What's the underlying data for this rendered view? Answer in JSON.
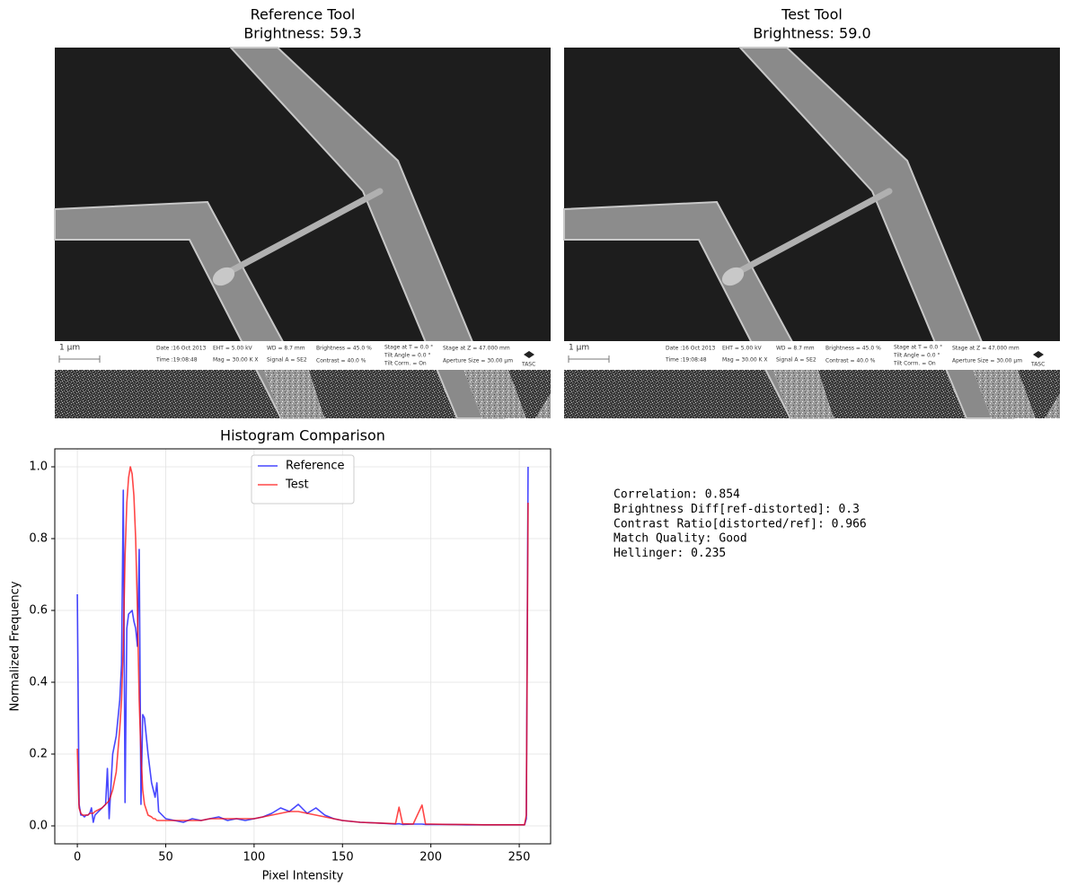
{
  "images": [
    {
      "title": "Reference Tool",
      "subtitle": "Brightness: 59.3"
    },
    {
      "title": "Test Tool",
      "subtitle": "Brightness: 59.0"
    }
  ],
  "sem_info": {
    "scale": "1 µm",
    "date": "Date :16 Oct 2013",
    "time": "Time :19:08:48",
    "eht": "EHT =  5.00 kV",
    "mag": "Mag =  30.00 K X",
    "wd": "WD =  8.7 mm",
    "signal": "Signal A = SE2",
    "brightness": "Brightness =  45.0 %",
    "contrast": "Contrast =  40.0 %",
    "stage_t": "Stage at T =   0.0 °",
    "tilt_angle": "Tilt Angle =   0.0 °",
    "tilt_corr": "Tilt Corrn. = On",
    "stage_z": "Stage at Z = 47.000 mm",
    "aperture": "Aperture Size = 30.00 µm",
    "logo": "TASC"
  },
  "chart_data": {
    "type": "line",
    "title": "Histogram Comparison",
    "x_label": "Pixel Intensity",
    "y_label": "Normalized Frequency",
    "x": [
      0,
      1,
      2,
      3,
      4,
      5,
      6,
      7,
      8,
      9,
      10,
      12,
      14,
      16,
      17,
      18,
      20,
      22,
      24,
      25,
      26,
      27,
      28,
      29,
      30,
      31,
      32,
      33,
      34,
      35,
      36,
      37,
      38,
      40,
      42,
      43,
      44,
      45,
      46,
      48,
      50,
      55,
      60,
      65,
      70,
      75,
      80,
      85,
      90,
      95,
      100,
      105,
      110,
      115,
      120,
      125,
      130,
      135,
      140,
      145,
      150,
      160,
      170,
      180,
      182,
      184,
      190,
      195,
      197,
      200,
      210,
      220,
      230,
      240,
      250,
      253,
      254,
      255
    ],
    "series": [
      {
        "name": "Reference",
        "color": "#0000ff",
        "values": [
          0.645,
          0.06,
          0.03,
          0.03,
          0.025,
          0.03,
          0.03,
          0.035,
          0.05,
          0.01,
          0.03,
          0.04,
          0.05,
          0.06,
          0.16,
          0.02,
          0.2,
          0.25,
          0.35,
          0.45,
          0.935,
          0.065,
          0.55,
          0.59,
          0.595,
          0.6,
          0.57,
          0.55,
          0.5,
          0.77,
          0.06,
          0.31,
          0.3,
          0.2,
          0.12,
          0.1,
          0.08,
          0.12,
          0.04,
          0.03,
          0.02,
          0.015,
          0.01,
          0.02,
          0.015,
          0.02,
          0.025,
          0.015,
          0.02,
          0.015,
          0.02,
          0.025,
          0.035,
          0.05,
          0.04,
          0.06,
          0.035,
          0.05,
          0.03,
          0.02,
          0.015,
          0.01,
          0.008,
          0.005,
          0.006,
          0.004,
          0.005,
          0.005,
          0.004,
          0.004,
          0.004,
          0.003,
          0.003,
          0.003,
          0.003,
          0.003,
          0.02,
          1.0
        ]
      },
      {
        "name": "Test",
        "color": "#ff0000",
        "values": [
          0.215,
          0.05,
          0.035,
          0.03,
          0.03,
          0.03,
          0.03,
          0.035,
          0.035,
          0.035,
          0.04,
          0.045,
          0.05,
          0.06,
          0.065,
          0.07,
          0.1,
          0.15,
          0.27,
          0.35,
          0.5,
          0.75,
          0.9,
          0.97,
          1.0,
          0.98,
          0.92,
          0.8,
          0.6,
          0.35,
          0.2,
          0.1,
          0.06,
          0.03,
          0.025,
          0.02,
          0.02,
          0.015,
          0.015,
          0.015,
          0.015,
          0.015,
          0.015,
          0.015,
          0.015,
          0.02,
          0.02,
          0.02,
          0.02,
          0.02,
          0.02,
          0.025,
          0.03,
          0.035,
          0.04,
          0.04,
          0.035,
          0.03,
          0.025,
          0.02,
          0.015,
          0.01,
          0.008,
          0.006,
          0.052,
          0.006,
          0.005,
          0.058,
          0.005,
          0.005,
          0.004,
          0.004,
          0.003,
          0.003,
          0.003,
          0.003,
          0.03,
          0.9
        ]
      }
    ],
    "xlim": [
      -12.75,
      267.75
    ],
    "ylim": [
      -0.05,
      1.05
    ],
    "xticks": [
      0,
      50,
      100,
      150,
      200,
      250
    ],
    "yticks": [
      {
        "value": 0,
        "label": "0.0"
      },
      {
        "value": 0.2,
        "label": "0.2"
      },
      {
        "value": 0.4,
        "label": "0.4"
      },
      {
        "value": 0.6,
        "label": "0.6"
      },
      {
        "value": 0.8,
        "label": "0.8"
      },
      {
        "value": 1,
        "label": "1.0"
      }
    ],
    "grid": true,
    "legend": "upper center"
  },
  "stats": [
    "Correlation: 0.854",
    "Brightness Diff[ref-distorted]: 0.3",
    "Contrast Ratio[distorted/ref]: 0.966",
    "Match Quality: Good",
    "Hellinger: 0.235"
  ]
}
